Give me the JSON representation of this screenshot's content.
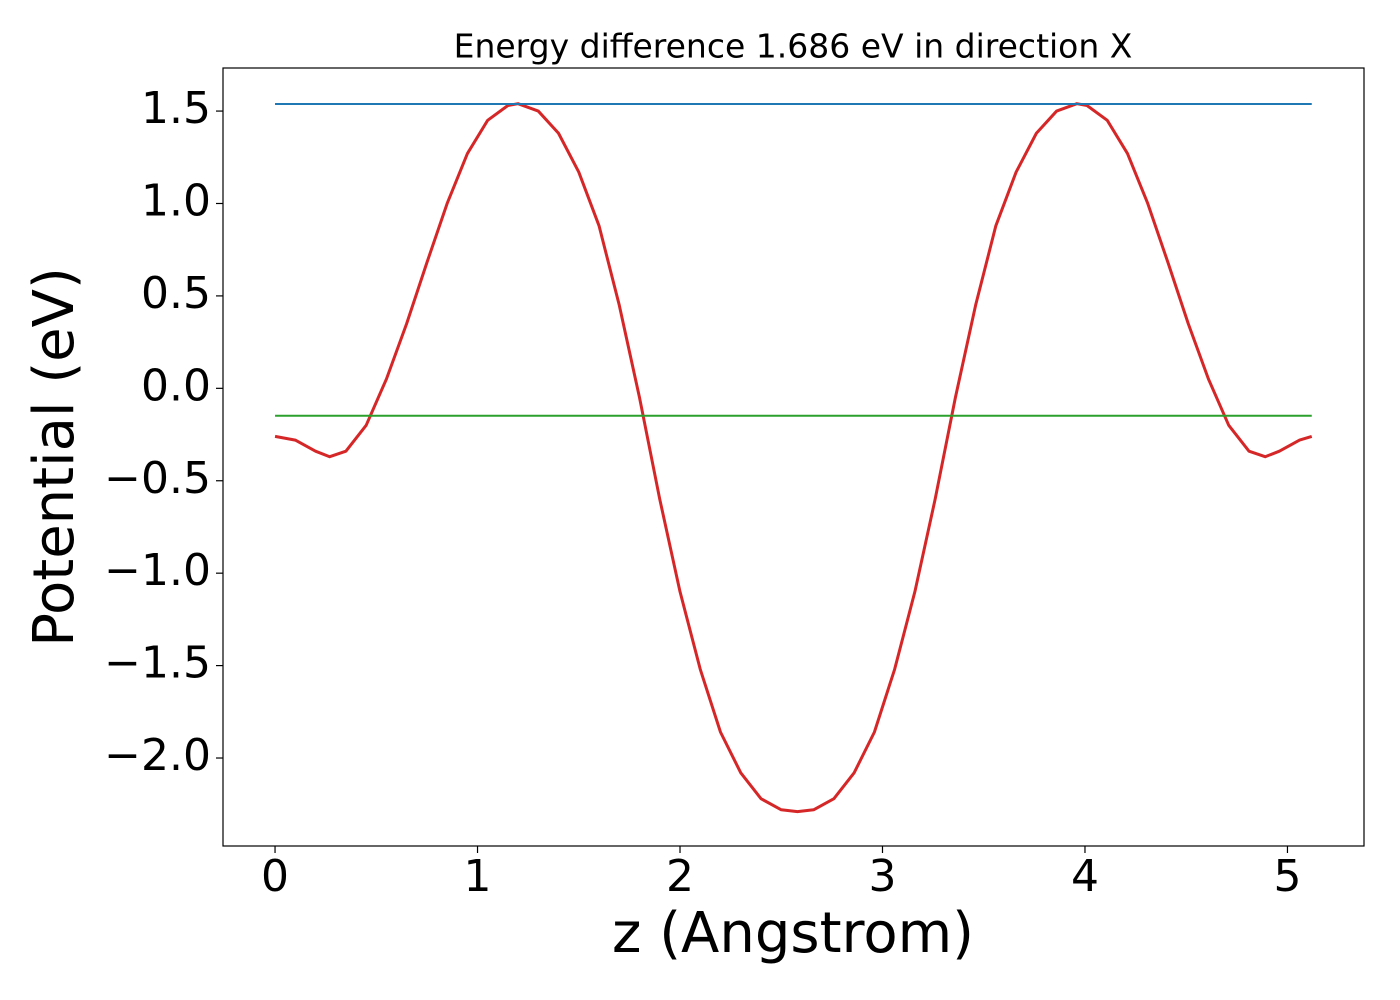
{
  "chart_data": {
    "type": "line",
    "title": "Energy difference 1.686 eV in direction X",
    "xlabel": "z (Angstrom)",
    "ylabel": "Potential (eV)",
    "xlim": [
      -0.257,
      5.378
    ],
    "ylim": [
      -2.476,
      1.733
    ],
    "xticks": [
      0,
      1,
      2,
      3,
      4,
      5
    ],
    "yticks": [
      {
        "value": -2.0,
        "label": "−2.0"
      },
      {
        "value": -1.5,
        "label": "−1.5"
      },
      {
        "value": -1.0,
        "label": "−1.0"
      },
      {
        "value": -0.5,
        "label": "−0.5"
      },
      {
        "value": 0.0,
        "label": "0.0"
      },
      0.5,
      {
        "value": 1.0,
        "label": "1.0"
      },
      1.5
    ],
    "grid": false,
    "series": [
      {
        "color": "#d62728",
        "x": [
          0,
          0.1,
          0.2,
          0.27,
          0.35,
          0.45,
          0.55,
          0.65,
          0.75,
          0.85,
          0.95,
          1.05,
          1.15,
          1.2,
          1.3,
          1.4,
          1.5,
          1.6,
          1.7,
          1.8,
          1.9,
          2.0,
          2.1,
          2.2,
          2.3,
          2.4,
          2.5,
          2.58,
          2.66,
          2.76,
          2.86,
          2.96,
          3.06,
          3.16,
          3.26,
          3.36,
          3.46,
          3.56,
          3.66,
          3.76,
          3.86,
          3.96,
          4.01,
          4.11,
          4.21,
          4.31,
          4.41,
          4.51,
          4.61,
          4.71,
          4.81,
          4.89,
          4.96,
          5.06,
          5.12
        ],
        "values": [
          -0.26,
          -0.28,
          -0.34,
          -0.37,
          -0.34,
          -0.2,
          0.05,
          0.35,
          0.68,
          1.0,
          1.27,
          1.45,
          1.53,
          1.54,
          1.5,
          1.38,
          1.17,
          0.88,
          0.45,
          -0.05,
          -0.6,
          -1.1,
          -1.52,
          -1.86,
          -2.08,
          -2.22,
          -2.28,
          -2.29,
          -2.28,
          -2.22,
          -2.08,
          -1.86,
          -1.52,
          -1.1,
          -0.6,
          -0.05,
          0.45,
          0.88,
          1.17,
          1.38,
          1.5,
          1.54,
          1.53,
          1.45,
          1.27,
          1.0,
          0.68,
          0.35,
          0.05,
          -0.2,
          -0.34,
          -0.37,
          -0.34,
          -0.28,
          -0.26
        ]
      },
      {
        "color": "#1f77b4",
        "x": [
          0,
          5.12
        ],
        "values": [
          1.538,
          1.538
        ]
      },
      {
        "color": "#2ca02c",
        "x": [
          0,
          5.12
        ],
        "values": [
          -0.148,
          -0.148
        ]
      }
    ]
  }
}
